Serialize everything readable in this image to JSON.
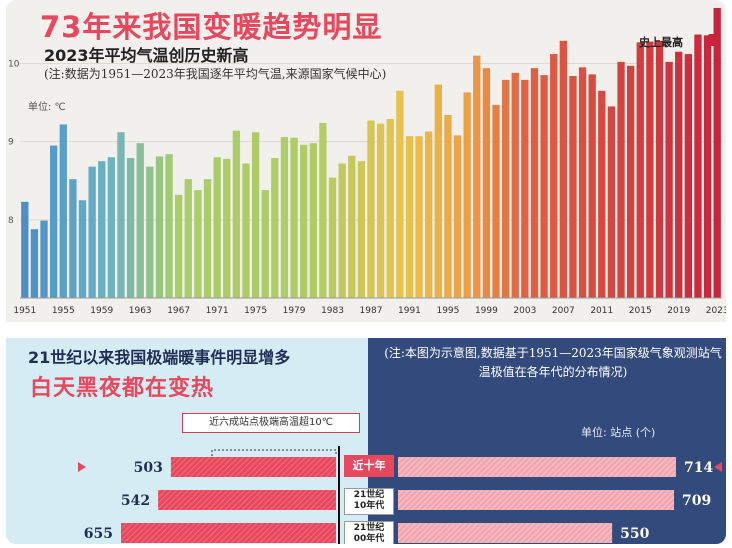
{
  "top": {
    "title": "73年来我国变暖趋势明显",
    "subtitle": "2023年平均气温创历史新高",
    "note": "(注:数据为1951—2023年我国逐年平均气温,来源国家气候中心)",
    "unit": "单位: ℃",
    "record_label": "史上最高",
    "colors": {
      "cool": "#4d8ec9",
      "mid": "#a8cd6a",
      "warm": "#e9c24a",
      "hot": "#e26143",
      "record": "#c8253c"
    }
  },
  "chart_data": [
    {
      "type": "bar",
      "title": "2023年平均气温创历史新高",
      "ylabel": "单位: ℃",
      "xlabel": "",
      "ylim": [
        7,
        10.3
      ],
      "yticks": [
        8,
        9,
        10
      ],
      "x": [
        1951,
        1952,
        1953,
        1954,
        1955,
        1956,
        1957,
        1958,
        1959,
        1960,
        1961,
        1962,
        1963,
        1964,
        1965,
        1966,
        1967,
        1968,
        1969,
        1970,
        1971,
        1972,
        1973,
        1974,
        1975,
        1976,
        1977,
        1978,
        1979,
        1980,
        1981,
        1982,
        1983,
        1984,
        1985,
        1986,
        1987,
        1988,
        1989,
        1990,
        1991,
        1992,
        1993,
        1994,
        1995,
        1996,
        1997,
        1998,
        1999,
        2000,
        2001,
        2002,
        2003,
        2004,
        2005,
        2006,
        2007,
        2008,
        2009,
        2010,
        2011,
        2012,
        2013,
        2014,
        2015,
        2016,
        2017,
        2018,
        2019,
        2020,
        2021,
        2022,
        2023
      ],
      "xticks": [
        "1951",
        "1955",
        "1959",
        "1963",
        "1967",
        "1971",
        "1975",
        "1979",
        "1983",
        "1987",
        "1991",
        "1995",
        "1999",
        "2003",
        "2007",
        "2011",
        "2015",
        "2019",
        "2023"
      ],
      "values": [
        8.23,
        7.88,
        7.99,
        8.95,
        9.22,
        8.52,
        8.25,
        8.68,
        8.75,
        8.8,
        9.12,
        8.79,
        8.98,
        8.68,
        8.81,
        8.84,
        8.32,
        8.52,
        8.38,
        8.52,
        8.8,
        8.78,
        9.14,
        8.72,
        9.12,
        8.38,
        8.79,
        9.06,
        9.05,
        8.96,
        8.98,
        9.24,
        8.54,
        8.72,
        8.82,
        8.75,
        9.27,
        9.23,
        9.29,
        9.65,
        9.07,
        9.07,
        9.13,
        9.73,
        9.34,
        9.08,
        9.63,
        10.1,
        9.94,
        9.47,
        9.79,
        9.88,
        9.79,
        9.94,
        9.85,
        10.12,
        10.29,
        9.84,
        9.95,
        9.86,
        9.65,
        9.45,
        10.02,
        9.97,
        10.27,
        10.28,
        10.29,
        10.02,
        10.15,
        10.12,
        10.37,
        10.36,
        10.71
      ]
    },
    {
      "type": "bar",
      "title": "21世纪以来我国极端暖事件明显增多",
      "subtitle": "白天黑夜都在变热",
      "note": "(注:本图为示意图,数据基于1951—2023年国家级气象观测站气温极值在各年代的分布情况)",
      "legend": "近六成站点极端高温超10℃",
      "unit": "单位: 站点 (个)",
      "categories": [
        "近十年",
        "21世纪10年代",
        "21世纪00年代"
      ],
      "category_lines": [
        [
          "近十年"
        ],
        [
          "21世纪",
          "10年代"
        ],
        [
          "21世纪",
          "00年代"
        ]
      ],
      "series": [
        {
          "name": "",
          "values": [
            503,
            542,
            655
          ]
        },
        {
          "name": "",
          "values": [
            714,
            709,
            550
          ]
        }
      ],
      "left_labels": [
        "503",
        "542",
        "655"
      ],
      "right_labels": [
        "714",
        "709",
        "550"
      ]
    }
  ]
}
